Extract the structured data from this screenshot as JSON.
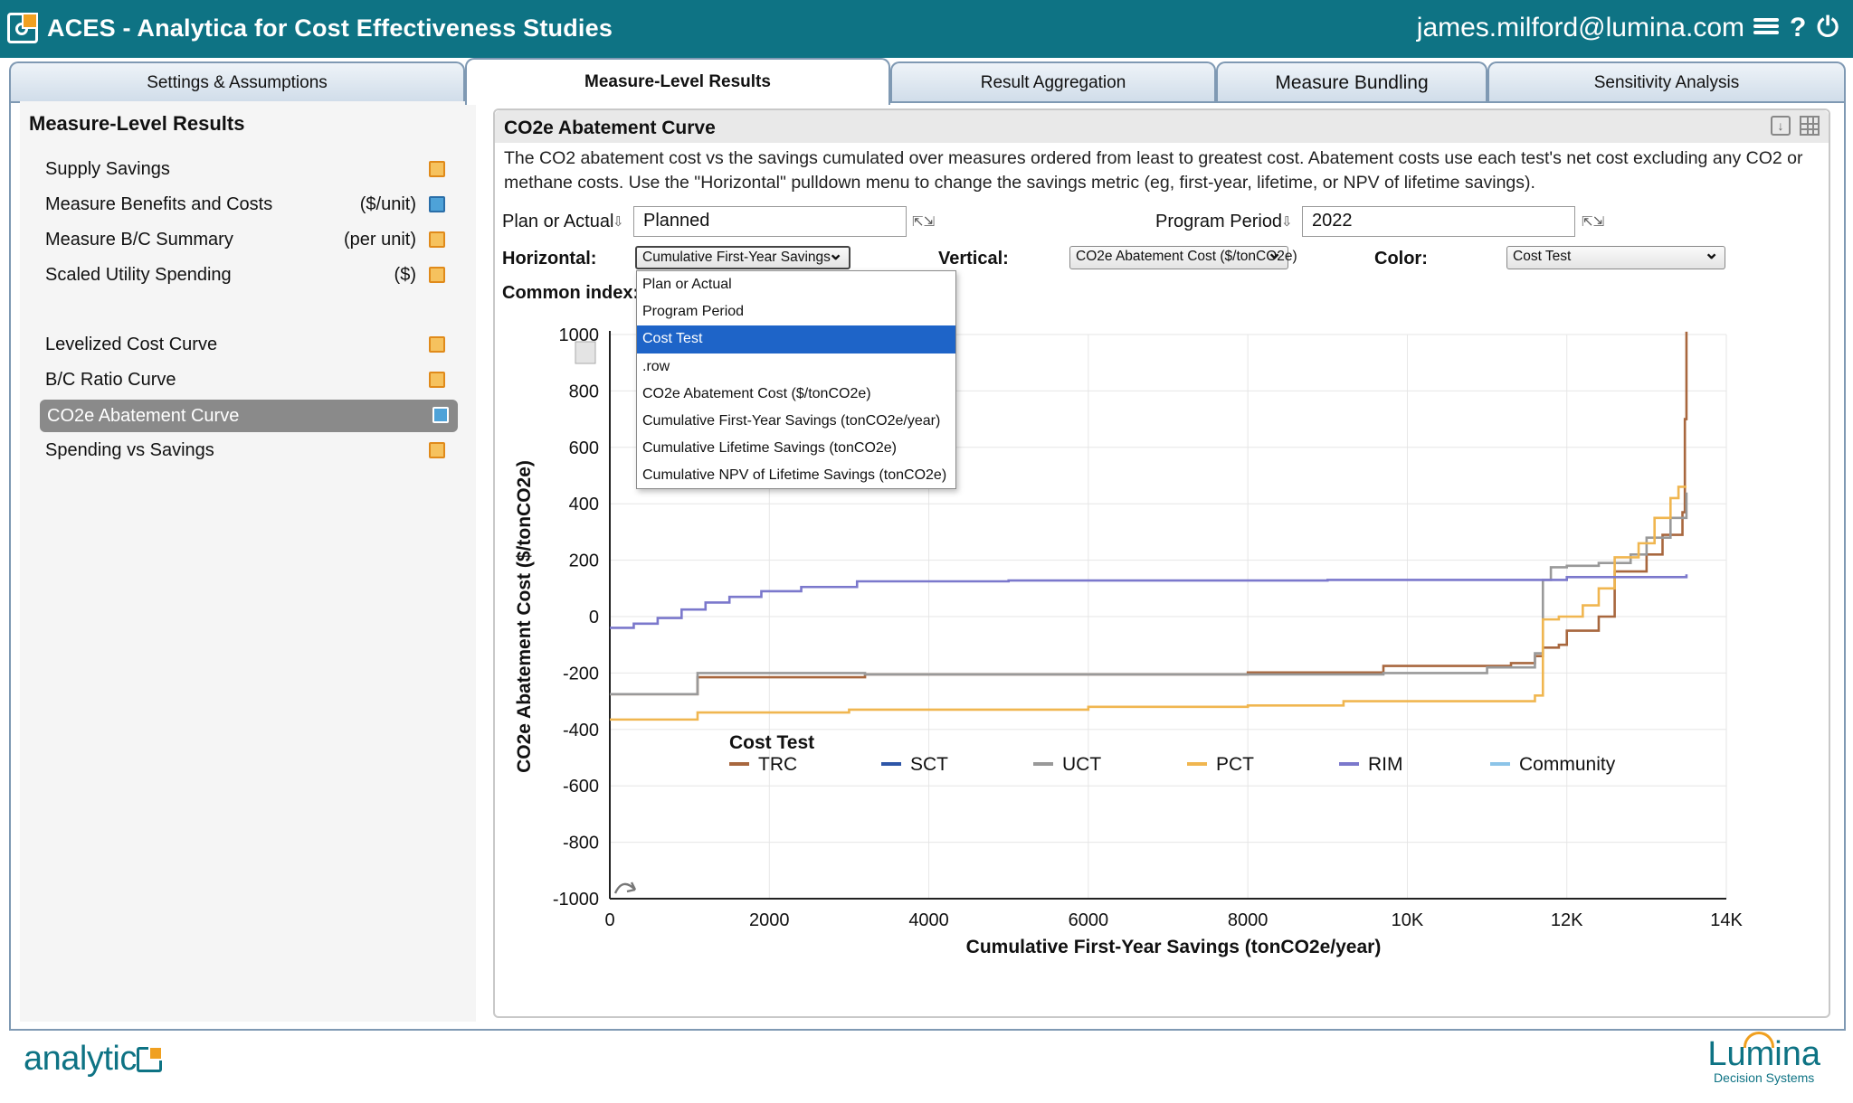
{
  "app": {
    "title": "ACES - Analytica for Cost Effectiveness Studies",
    "user_email": "james.milford@lumina.com",
    "help_glyph": "?",
    "power_glyph": "⏻"
  },
  "tabs": [
    {
      "label": "Settings & Assumptions"
    },
    {
      "label": "Measure-Level Results"
    },
    {
      "label": "Result Aggregation"
    },
    {
      "label": "Measure Bundling"
    },
    {
      "label": "Sensitivity Analysis"
    }
  ],
  "sidebar": {
    "title": "Measure-Level Results",
    "items": [
      {
        "label": "Supply Savings",
        "unit": ""
      },
      {
        "label": "Measure Benefits and Costs",
        "unit": "($/unit)"
      },
      {
        "label": "Measure B/C Summary",
        "unit": "(per unit)"
      },
      {
        "label": "Scaled Utility Spending",
        "unit": "($)"
      },
      {
        "label": "Levelized Cost Curve",
        "unit": ""
      },
      {
        "label": "B/C Ratio Curve",
        "unit": ""
      },
      {
        "label": "CO2e Abatement Curve",
        "unit": ""
      },
      {
        "label": "Spending vs Savings",
        "unit": ""
      }
    ]
  },
  "panel": {
    "title": "CO2e Abatement Curve",
    "description_line1": "The CO2 abatement cost vs the savings cumulated over measures ordered from least to greatest cost. Abatement costs use each test's net cost excluding any CO2 or",
    "description_line2": "methane costs. Use the \"Horizontal\" pulldown menu to change the savings metric (eg, first-year, lifetime, or NPV of lifetime savings).",
    "plan_label": "Plan or Actual",
    "plan_value": "Planned",
    "period_label": "Program Period",
    "period_value": "2022",
    "horizontal_label": "Horizontal:",
    "horizontal_value": "Cumulative First-Year Savings",
    "vertical_label": "Vertical:",
    "vertical_value": "CO2e Abatement Cost ($/tonCO2e)",
    "color_label": "Color:",
    "color_value": "Cost Test",
    "common_index_label": "Common index:"
  },
  "dropdown": {
    "options": [
      "Plan or Actual",
      "Program Period",
      "Cost Test",
      ".row",
      "CO2e Abatement Cost ($/tonCO2e)",
      "Cumulative First-Year Savings (tonCO2e/year)",
      "Cumulative Lifetime Savings (tonCO2e)",
      "Cumulative NPV of Lifetime Savings (tonCO2e)"
    ],
    "selected": "Cost Test"
  },
  "chart_data": {
    "type": "line",
    "xlabel": "Cumulative First-Year Savings (tonCO2e/year)",
    "ylabel": "CO2e Abatement Cost ($/tonCO2e)",
    "xlim": [
      0,
      14000
    ],
    "ylim": [
      -1000,
      1000
    ],
    "x_ticks": [
      "0",
      "2000",
      "4000",
      "6000",
      "8000",
      "10K",
      "12K",
      "14K"
    ],
    "y_ticks": [
      "1000",
      "800",
      "600",
      "400",
      "200",
      "0",
      "-200",
      "-400",
      "-600",
      "-800",
      "-1000"
    ],
    "grid": true,
    "legend_title": "Cost Test",
    "legend_position": "bottom",
    "series": [
      {
        "name": "TRC",
        "color": "#a8673e",
        "x": [
          0,
          800,
          1100,
          3200,
          8000,
          9700,
          11300,
          11600,
          11700,
          11900,
          12000,
          12200,
          12400,
          12600,
          13000,
          13200,
          13450,
          13480,
          13500
        ],
        "y": [
          -275,
          -275,
          -215,
          -205,
          -198,
          -175,
          -165,
          -140,
          -110,
          -100,
          -50,
          -50,
          0,
          160,
          220,
          290,
          370,
          700,
          1010
        ]
      },
      {
        "name": "SCT",
        "color": "#2e56a8",
        "x": [],
        "y": []
      },
      {
        "name": "UCT",
        "color": "#999999",
        "x": [
          0,
          800,
          1100,
          3200,
          8000,
          9700,
          11000,
          11600,
          11700,
          11800,
          12000,
          12400,
          12800,
          13000,
          13300,
          13500
        ],
        "y": [
          -275,
          -275,
          -200,
          -205,
          -205,
          -200,
          -180,
          -130,
          130,
          175,
          180,
          190,
          220,
          280,
          350,
          440
        ]
      },
      {
        "name": "PCT",
        "color": "#f0b650",
        "x": [
          0,
          1100,
          3000,
          6000,
          8000,
          9200,
          11600,
          11700,
          11900,
          12000,
          12200,
          12400,
          12600,
          12900,
          13100,
          13300,
          13400,
          13500
        ],
        "y": [
          -365,
          -340,
          -330,
          -320,
          -315,
          -300,
          -280,
          -10,
          0,
          0,
          40,
          100,
          210,
          260,
          350,
          420,
          460,
          460
        ]
      },
      {
        "name": "RIM",
        "color": "#7b78cc",
        "x": [
          0,
          300,
          600,
          900,
          1200,
          1500,
          1900,
          2400,
          3100,
          5000,
          9000,
          12000,
          13500
        ],
        "y": [
          -40,
          -25,
          -5,
          25,
          50,
          70,
          90,
          105,
          125,
          128,
          130,
          140,
          150
        ]
      },
      {
        "name": "Community",
        "color": "#8cc4e8",
        "x": [],
        "y": []
      }
    ]
  }
}
